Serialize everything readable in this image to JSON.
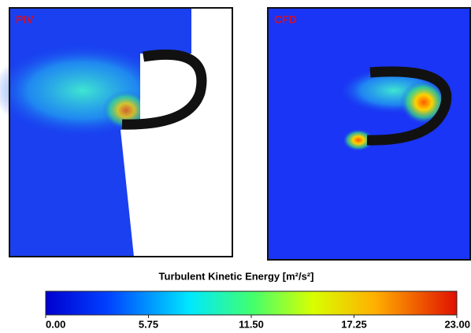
{
  "panels": [
    {
      "label": "PIV"
    },
    {
      "label": "CFD"
    }
  ],
  "colorbar": {
    "title": "Turbulent Kinetic Energy [m²/s²]",
    "lim": [
      0,
      23
    ],
    "ticks": [
      {
        "value": 0,
        "label": "0.00"
      },
      {
        "value": 5.75,
        "label": "5.75"
      },
      {
        "value": 11.5,
        "label": "11.50"
      },
      {
        "value": 17.25,
        "label": "17.25"
      },
      {
        "value": 23,
        "label": "23.00"
      }
    ]
  }
}
